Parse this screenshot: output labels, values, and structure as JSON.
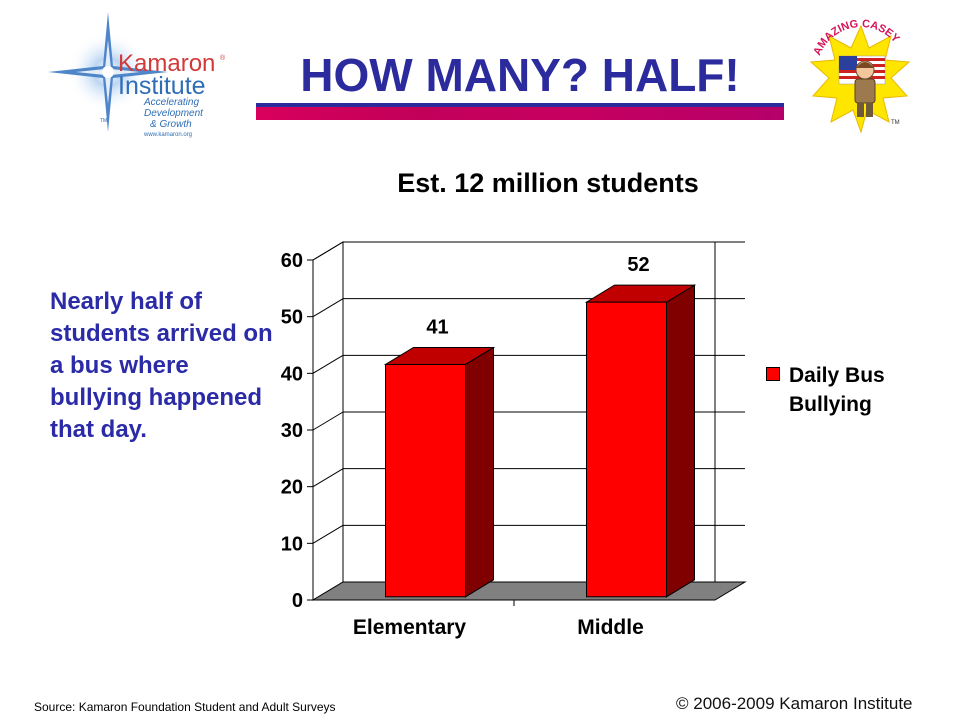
{
  "logo": {
    "name": "Kamaron",
    "name2": "Institute",
    "tagline": [
      "Accelerating",
      "Development",
      "& Growth"
    ],
    "url": "www.kamaron.org",
    "tm": "TM",
    "colors": {
      "red": "#d23a3a",
      "blue": "#2f6db5"
    }
  },
  "header": {
    "title": "HOW MANY? HALF!"
  },
  "casey": {
    "text": "AMAZING CASEY",
    "tm": "TM"
  },
  "side_text": "Nearly half of students arrived on a bus where bullying happened that day.",
  "chart_data": {
    "type": "bar",
    "title": "Est. 12 million students",
    "categories": [
      "Elementary",
      "Middle"
    ],
    "series": [
      {
        "name": "Daily Bus Bullying",
        "values": [
          41,
          52
        ],
        "color": "#ff0000",
        "side_color": "#800000"
      }
    ],
    "data_labels": [
      "41",
      "52"
    ],
    "ylim": [
      0,
      60
    ],
    "yticks": [
      0,
      10,
      20,
      30,
      40,
      50,
      60
    ],
    "xlabel": "",
    "ylabel": "",
    "grid": true,
    "legend": "right",
    "style": "3d-column",
    "floor_color": "#808080"
  },
  "footer": {
    "source": "Source: Kamaron Foundation Student and Adult Surveys",
    "copyright": "© 2006-2009 Kamaron Institute"
  }
}
